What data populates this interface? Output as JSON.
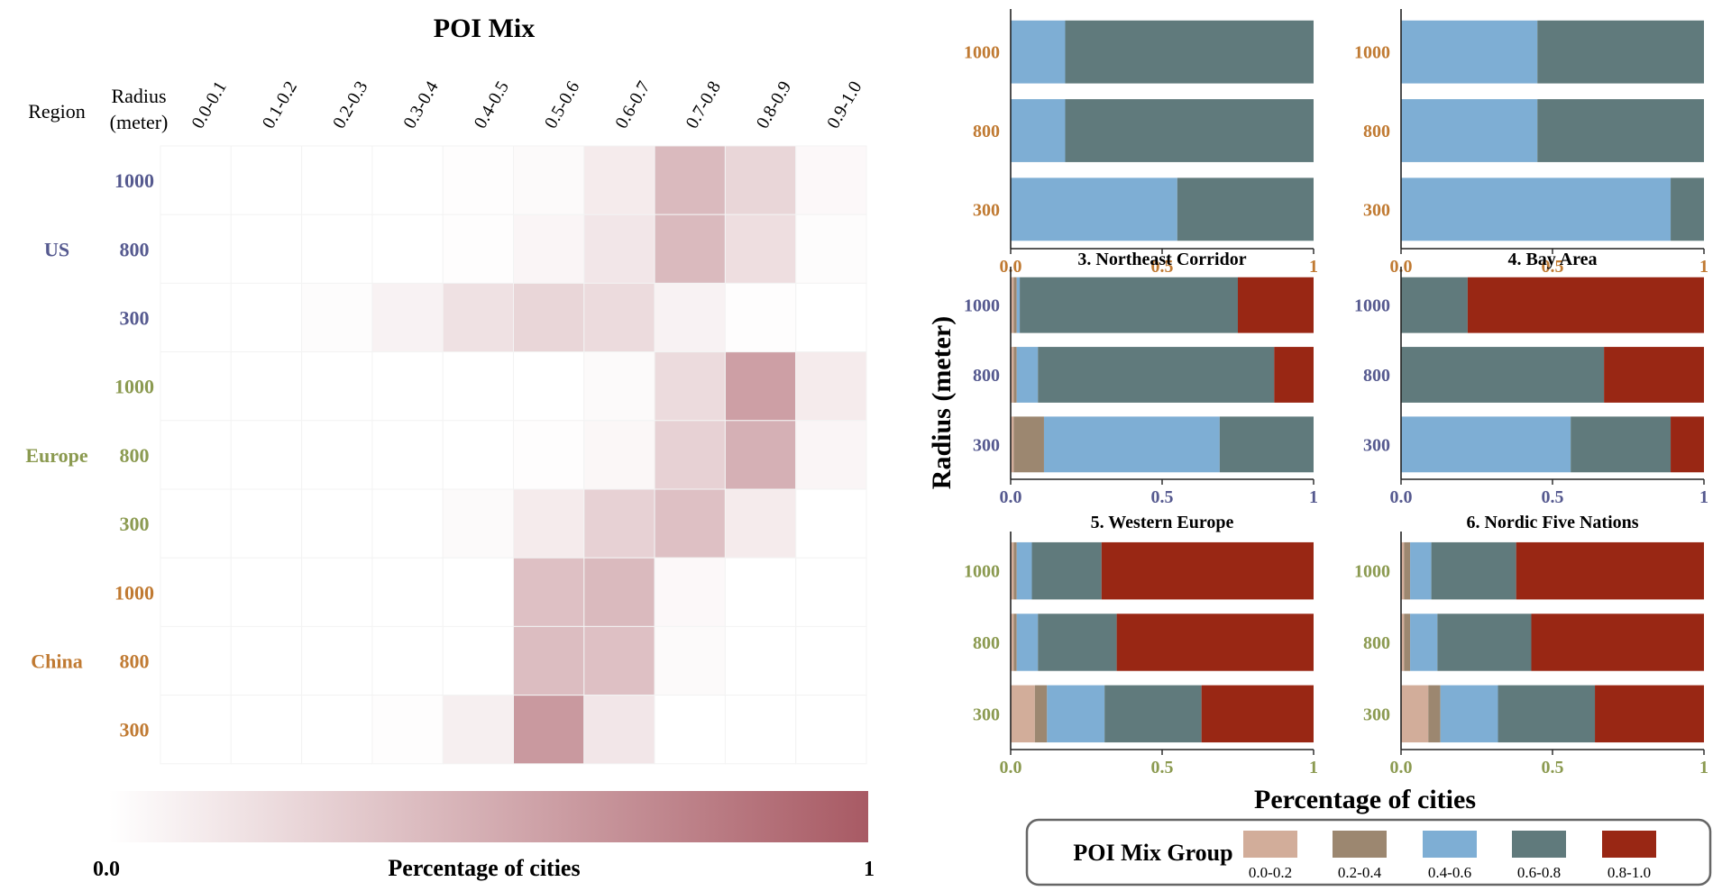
{
  "chart_data": [
    {
      "type": "heatmap",
      "title": "POI Mix",
      "row_header_region": "Region",
      "row_header_radius_line1": "Radius",
      "row_header_radius_line2": "(meter)",
      "columns": [
        "0.0-0.1",
        "0.1-0.2",
        "0.2-0.3",
        "0.3-0.4",
        "0.4-0.5",
        "0.5-0.6",
        "0.6-0.7",
        "0.7-0.8",
        "0.8-0.9",
        "0.9-1.0"
      ],
      "regions": [
        {
          "name": "US",
          "color": "#55598f",
          "rows": [
            {
              "radius": "1000",
              "values": [
                0.0,
                0.0,
                0.0,
                0.0,
                0.01,
                0.03,
                0.12,
                0.42,
                0.25,
                0.04
              ]
            },
            {
              "radius": "800",
              "values": [
                0.0,
                0.0,
                0.0,
                0.0,
                0.01,
                0.06,
                0.15,
                0.42,
                0.2,
                0.02
              ]
            },
            {
              "radius": "300",
              "values": [
                0.0,
                0.0,
                0.02,
                0.08,
                0.18,
                0.25,
                0.22,
                0.08,
                0.01,
                0.0
              ]
            }
          ]
        },
        {
          "name": "Europe",
          "color": "#8b9a50",
          "rows": [
            {
              "radius": "1000",
              "values": [
                0.0,
                0.0,
                0.0,
                0.0,
                0.0,
                0.0,
                0.03,
                0.22,
                0.58,
                0.12
              ]
            },
            {
              "radius": "800",
              "values": [
                0.0,
                0.0,
                0.0,
                0.0,
                0.0,
                0.01,
                0.05,
                0.28,
                0.48,
                0.06
              ]
            },
            {
              "radius": "300",
              "values": [
                0.0,
                0.0,
                0.0,
                0.0,
                0.03,
                0.12,
                0.28,
                0.38,
                0.12,
                0.0
              ]
            }
          ]
        },
        {
          "name": "China",
          "color": "#c07a32",
          "rows": [
            {
              "radius": "1000",
              "values": [
                0.0,
                0.0,
                0.0,
                0.0,
                0.0,
                0.38,
                0.42,
                0.04,
                0.0,
                0.0
              ]
            },
            {
              "radius": "800",
              "values": [
                0.0,
                0.0,
                0.0,
                0.0,
                0.0,
                0.4,
                0.38,
                0.03,
                0.0,
                0.0
              ]
            },
            {
              "radius": "300",
              "values": [
                0.0,
                0.0,
                0.0,
                0.01,
                0.1,
                0.62,
                0.15,
                0.0,
                0.0,
                0.0
              ]
            }
          ]
        }
      ],
      "colorbar": {
        "min_label": "0.0",
        "max_label": "1",
        "label": "Percentage of cities",
        "min": 0,
        "max": 1,
        "color_low": "#ffffff",
        "color_high": "#a85a64"
      }
    },
    {
      "type": "bar",
      "orientation": "horizontal",
      "stacked": true,
      "shared_ylabel": "Radius (meter)",
      "shared_xlabel": "Percentage of cities",
      "xlim": [
        0,
        1
      ],
      "xticks": [
        "0.0",
        "0.5",
        "1"
      ],
      "legend": {
        "title": "POI Mix Group",
        "placement": "bottom",
        "entries": [
          {
            "label": "0.0-0.2",
            "color": "#d2ad9a"
          },
          {
            "label": "0.2-0.4",
            "color": "#9c8770"
          },
          {
            "label": "0.4-0.6",
            "color": "#7eaed4"
          },
          {
            "label": "0.6-0.8",
            "color": "#607a7c"
          },
          {
            "label": "0.8-1.0",
            "color": "#992714"
          }
        ]
      },
      "panels": [
        {
          "title": "",
          "tick_color": "#c07a32",
          "rows": [
            {
              "radius": "1000",
              "values": [
                0.0,
                0.0,
                0.18,
                0.82,
                0.0
              ]
            },
            {
              "radius": "800",
              "values": [
                0.0,
                0.0,
                0.18,
                0.82,
                0.0
              ]
            },
            {
              "radius": "300",
              "values": [
                0.0,
                0.0,
                0.55,
                0.45,
                0.0
              ]
            }
          ]
        },
        {
          "title": "",
          "tick_color": "#c07a32",
          "rows": [
            {
              "radius": "1000",
              "values": [
                0.0,
                0.0,
                0.45,
                0.55,
                0.0
              ]
            },
            {
              "radius": "800",
              "values": [
                0.0,
                0.0,
                0.45,
                0.55,
                0.0
              ]
            },
            {
              "radius": "300",
              "values": [
                0.0,
                0.0,
                0.89,
                0.11,
                0.0
              ]
            }
          ]
        },
        {
          "title": "3. Northeast Corridor",
          "tick_color": "#55598f",
          "rows": [
            {
              "radius": "1000",
              "values": [
                0.01,
                0.01,
                0.01,
                0.72,
                0.25
              ]
            },
            {
              "radius": "800",
              "values": [
                0.01,
                0.01,
                0.07,
                0.78,
                0.13
              ]
            },
            {
              "radius": "300",
              "values": [
                0.01,
                0.1,
                0.58,
                0.31,
                0.0
              ]
            }
          ]
        },
        {
          "title": "4. Bay Area",
          "tick_color": "#55598f",
          "rows": [
            {
              "radius": "1000",
              "values": [
                0.0,
                0.0,
                0.0,
                0.22,
                0.78
              ]
            },
            {
              "radius": "800",
              "values": [
                0.0,
                0.0,
                0.0,
                0.67,
                0.33
              ]
            },
            {
              "radius": "300",
              "values": [
                0.0,
                0.0,
                0.56,
                0.33,
                0.11
              ]
            }
          ]
        },
        {
          "title": "5. Western Europe",
          "tick_color": "#8b9a50",
          "rows": [
            {
              "radius": "1000",
              "values": [
                0.01,
                0.01,
                0.05,
                0.23,
                0.7
              ]
            },
            {
              "radius": "800",
              "values": [
                0.01,
                0.01,
                0.07,
                0.26,
                0.65
              ]
            },
            {
              "radius": "300",
              "values": [
                0.08,
                0.04,
                0.19,
                0.32,
                0.37
              ]
            }
          ]
        },
        {
          "title": "6. Nordic Five Nations",
          "tick_color": "#8b9a50",
          "rows": [
            {
              "radius": "1000",
              "values": [
                0.01,
                0.02,
                0.07,
                0.28,
                0.62
              ]
            },
            {
              "radius": "800",
              "values": [
                0.01,
                0.02,
                0.09,
                0.31,
                0.57
              ]
            },
            {
              "radius": "300",
              "values": [
                0.09,
                0.04,
                0.19,
                0.32,
                0.36
              ]
            }
          ]
        }
      ]
    }
  ]
}
